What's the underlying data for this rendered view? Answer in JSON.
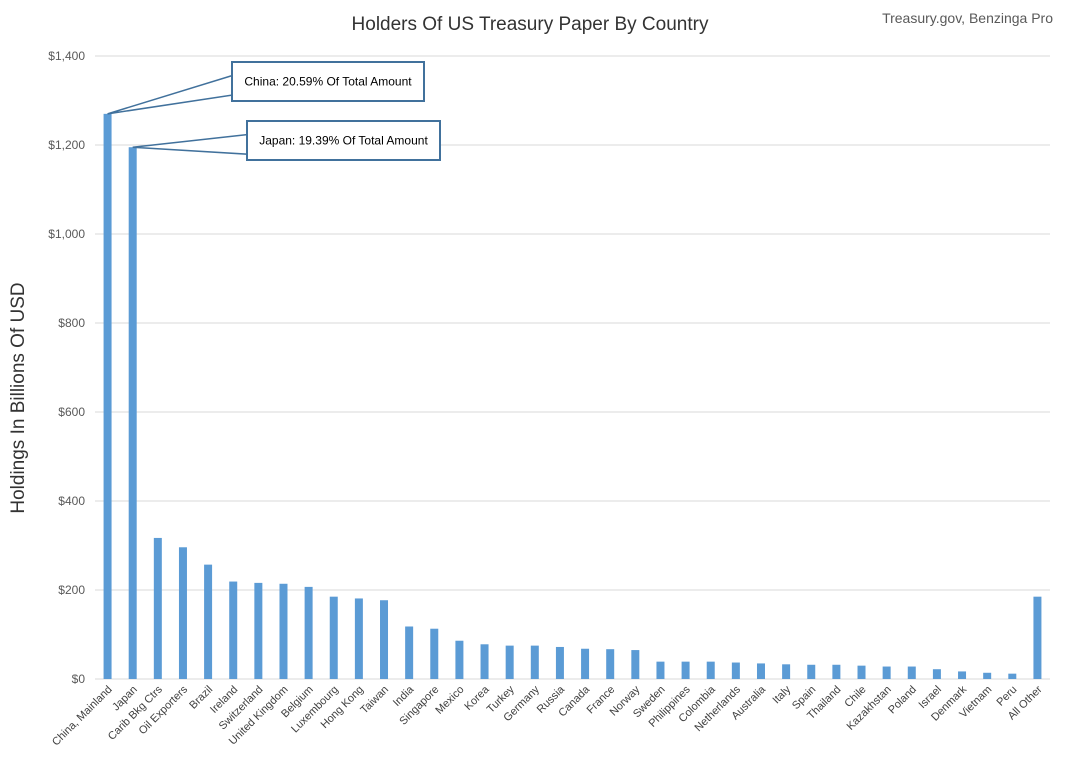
{
  "chart_data": {
    "type": "bar",
    "title": "Holders Of US Treasury Paper By Country",
    "source": "Treasury.gov,  Benzinga Pro",
    "xlabel": "",
    "ylabel": "Holdings In Billions Of USD",
    "ylim": [
      0,
      1400
    ],
    "yticks": [
      0,
      200,
      400,
      600,
      800,
      1000,
      1200,
      1400
    ],
    "ytick_labels": [
      "$0",
      "$200",
      "$400",
      "$600",
      "$800",
      "$1,000",
      "$1,200",
      "$1,400"
    ],
    "grid": true,
    "categories": [
      "China, Mainland",
      "Japan",
      "Carib Bkg Ctrs",
      "Oil Exporters",
      "Brazil",
      "Ireland",
      "Switzerland",
      "United Kingdom",
      "Belgium",
      "Luxembourg",
      "Hong Kong",
      "Taiwan",
      "India",
      "Singapore",
      "Mexico",
      "Korea",
      "Turkey",
      "Germany",
      "Russia",
      "Canada",
      "France",
      "Norway",
      "Sweden",
      "Philippines",
      "Colombia",
      "Netherlands",
      "Australia",
      "Italy",
      "Spain",
      "Thailand",
      "Chile",
      "Kazakhstan",
      "Poland",
      "Israel",
      "Denmark",
      "Vietnam",
      "Peru",
      "All Other"
    ],
    "values": [
      1270,
      1195,
      317,
      296,
      257,
      219,
      216,
      214,
      207,
      185,
      181,
      177,
      118,
      113,
      86,
      78,
      75,
      75,
      72,
      68,
      67,
      65,
      39,
      39,
      39,
      37,
      35,
      33,
      32,
      32,
      30,
      28,
      28,
      22,
      17,
      14,
      12,
      185
    ],
    "annotations": [
      {
        "category": "China, Mainland",
        "text": "China:  20.59% Of Total Amount"
      },
      {
        "category": "Japan",
        "text": "Japan: 19.39% Of Total Amount"
      }
    ],
    "colors": {
      "bar": "#5b9bd5",
      "callout_border": "#41719c",
      "grid": "#d9d9d9"
    }
  }
}
